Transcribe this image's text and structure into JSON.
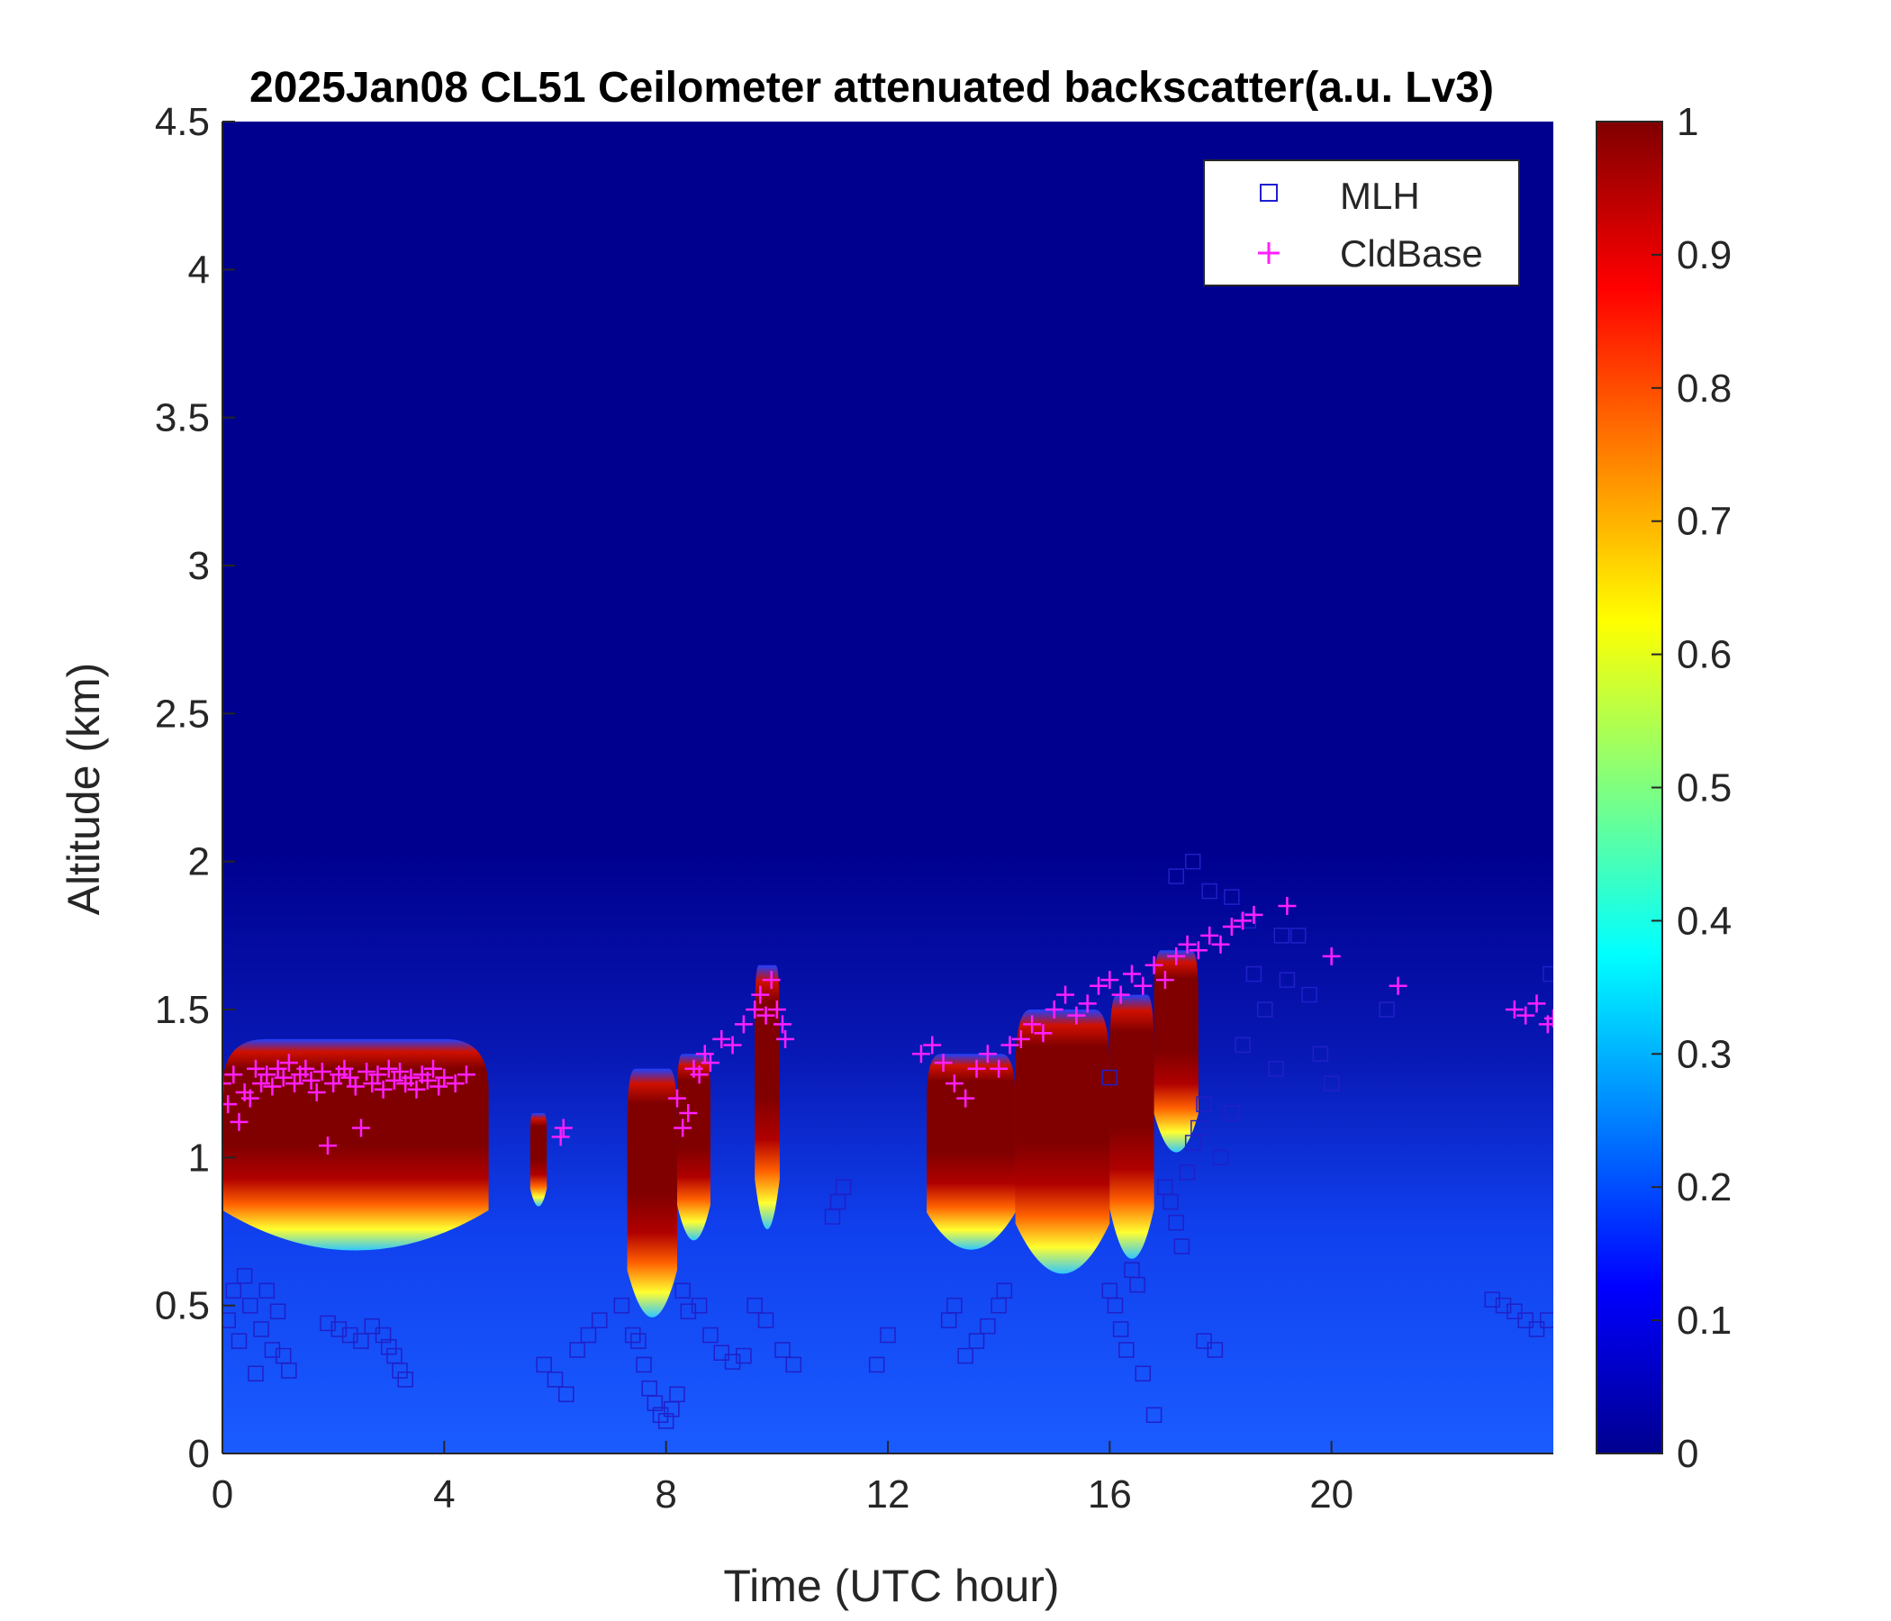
{
  "chart_data": {
    "type": "heatmap",
    "title": "2025Jan08 CL51 Ceilometer attenuated backscatter(a.u. Lv3)",
    "xlabel": "Time (UTC hour)",
    "ylabel": "Altitude (km)",
    "xlim": [
      0,
      24
    ],
    "ylim": [
      0,
      4.5
    ],
    "x_ticks": [
      0,
      4,
      8,
      12,
      16,
      20
    ],
    "y_ticks": [
      0,
      0.5,
      1,
      1.5,
      2,
      2.5,
      3,
      3.5,
      4,
      4.5
    ],
    "colorbar": {
      "colormap": "jet",
      "clim": [
        0,
        1
      ],
      "ticks": [
        0,
        0.1,
        0.2,
        0.3,
        0.4,
        0.5,
        0.6,
        0.7,
        0.8,
        0.9,
        1
      ]
    },
    "legend": {
      "position": "top-right",
      "entries": [
        {
          "name": "MLH",
          "marker": "square",
          "color": "#1f1fd0"
        },
        {
          "name": "CldBase",
          "marker": "plus",
          "color": "#ff1fff"
        }
      ]
    },
    "cloud_layers": [
      {
        "t0": 0.0,
        "t1": 4.8,
        "base": 0.72,
        "top": 1.4
      },
      {
        "t0": 5.55,
        "t1": 5.85,
        "base": 0.85,
        "top": 1.15
      },
      {
        "t0": 7.3,
        "t1": 8.2,
        "base": 0.5,
        "top": 1.3
      },
      {
        "t0": 8.2,
        "t1": 8.8,
        "base": 0.75,
        "top": 1.35
      },
      {
        "t0": 9.6,
        "t1": 10.05,
        "base": 0.8,
        "top": 1.65
      },
      {
        "t0": 12.7,
        "t1": 14.3,
        "base": 0.72,
        "top": 1.35
      },
      {
        "t0": 14.3,
        "t1": 16.0,
        "base": 0.65,
        "top": 1.5
      },
      {
        "t0": 16.0,
        "t1": 16.8,
        "base": 0.7,
        "top": 1.55
      },
      {
        "t0": 16.8,
        "t1": 17.6,
        "base": 1.05,
        "top": 1.7
      }
    ],
    "series": [
      {
        "name": "MLH",
        "points": [
          [
            0.1,
            0.45
          ],
          [
            0.2,
            0.55
          ],
          [
            0.3,
            0.38
          ],
          [
            0.4,
            0.6
          ],
          [
            0.5,
            0.5
          ],
          [
            0.6,
            0.27
          ],
          [
            0.7,
            0.42
          ],
          [
            0.8,
            0.55
          ],
          [
            0.9,
            0.35
          ],
          [
            1.0,
            0.48
          ],
          [
            1.1,
            0.33
          ],
          [
            1.2,
            0.28
          ],
          [
            1.9,
            0.44
          ],
          [
            2.1,
            0.42
          ],
          [
            2.3,
            0.4
          ],
          [
            2.5,
            0.38
          ],
          [
            2.7,
            0.43
          ],
          [
            2.9,
            0.4
          ],
          [
            3.0,
            0.36
          ],
          [
            3.1,
            0.33
          ],
          [
            3.2,
            0.28
          ],
          [
            3.3,
            0.25
          ],
          [
            5.8,
            0.3
          ],
          [
            6.0,
            0.25
          ],
          [
            6.2,
            0.2
          ],
          [
            6.4,
            0.35
          ],
          [
            6.6,
            0.4
          ],
          [
            6.8,
            0.45
          ],
          [
            7.2,
            0.5
          ],
          [
            7.4,
            0.4
          ],
          [
            7.5,
            0.38
          ],
          [
            7.6,
            0.3
          ],
          [
            7.7,
            0.22
          ],
          [
            7.8,
            0.17
          ],
          [
            7.9,
            0.13
          ],
          [
            8.0,
            0.11
          ],
          [
            8.1,
            0.15
          ],
          [
            8.2,
            0.2
          ],
          [
            8.3,
            0.55
          ],
          [
            8.4,
            0.48
          ],
          [
            8.6,
            0.5
          ],
          [
            8.8,
            0.4
          ],
          [
            9.0,
            0.34
          ],
          [
            9.2,
            0.31
          ],
          [
            9.4,
            0.33
          ],
          [
            9.6,
            0.5
          ],
          [
            9.8,
            0.45
          ],
          [
            10.1,
            0.35
          ],
          [
            10.3,
            0.3
          ],
          [
            11.0,
            0.8
          ],
          [
            11.1,
            0.85
          ],
          [
            11.2,
            0.9
          ],
          [
            11.8,
            0.3
          ],
          [
            12.0,
            0.4
          ],
          [
            13.1,
            0.45
          ],
          [
            13.2,
            0.5
          ],
          [
            13.4,
            0.33
          ],
          [
            13.6,
            0.38
          ],
          [
            13.8,
            0.43
          ],
          [
            14.0,
            0.5
          ],
          [
            14.1,
            0.55
          ],
          [
            16.0,
            1.27
          ],
          [
            16.0,
            0.55
          ],
          [
            16.1,
            0.5
          ],
          [
            16.2,
            0.42
          ],
          [
            16.3,
            0.35
          ],
          [
            16.4,
            0.62
          ],
          [
            16.5,
            0.57
          ],
          [
            16.6,
            0.27
          ],
          [
            16.8,
            0.13
          ],
          [
            17.0,
            0.9
          ],
          [
            17.1,
            0.85
          ],
          [
            17.2,
            0.78
          ],
          [
            17.3,
            0.7
          ],
          [
            17.4,
            0.95
          ],
          [
            17.5,
            1.05
          ],
          [
            17.6,
            1.1
          ],
          [
            17.7,
            1.18
          ],
          [
            17.7,
            0.38
          ],
          [
            17.9,
            0.35
          ],
          [
            18.0,
            1.0
          ],
          [
            18.2,
            1.15
          ],
          [
            18.4,
            1.38
          ],
          [
            18.6,
            1.62
          ],
          [
            18.8,
            1.5
          ],
          [
            19.0,
            1.3
          ],
          [
            19.2,
            1.6
          ],
          [
            19.4,
            1.75
          ],
          [
            19.6,
            1.55
          ],
          [
            19.8,
            1.35
          ],
          [
            20.0,
            1.25
          ],
          [
            17.2,
            1.95
          ],
          [
            17.5,
            2.0
          ],
          [
            17.8,
            1.9
          ],
          [
            18.2,
            1.88
          ],
          [
            18.5,
            1.8
          ],
          [
            19.1,
            1.75
          ],
          [
            21.0,
            1.5
          ],
          [
            22.9,
            0.52
          ],
          [
            23.1,
            0.5
          ],
          [
            23.3,
            0.48
          ],
          [
            23.5,
            0.45
          ],
          [
            23.7,
            0.42
          ],
          [
            23.9,
            0.45
          ],
          [
            23.95,
            1.62
          ]
        ]
      },
      {
        "name": "CldBase",
        "points": [
          [
            0.0,
            1.25
          ],
          [
            0.1,
            1.18
          ],
          [
            0.2,
            1.28
          ],
          [
            0.3,
            1.12
          ],
          [
            0.4,
            1.22
          ],
          [
            0.5,
            1.2
          ],
          [
            0.6,
            1.3
          ],
          [
            0.7,
            1.25
          ],
          [
            0.8,
            1.28
          ],
          [
            0.9,
            1.24
          ],
          [
            1.0,
            1.3
          ],
          [
            1.1,
            1.27
          ],
          [
            1.2,
            1.32
          ],
          [
            1.3,
            1.25
          ],
          [
            1.4,
            1.28
          ],
          [
            1.5,
            1.3
          ],
          [
            1.6,
            1.26
          ],
          [
            1.7,
            1.22
          ],
          [
            1.8,
            1.29
          ],
          [
            1.9,
            1.04
          ],
          [
            2.0,
            1.25
          ],
          [
            2.1,
            1.28
          ],
          [
            2.2,
            1.3
          ],
          [
            2.3,
            1.27
          ],
          [
            2.4,
            1.24
          ],
          [
            2.5,
            1.1
          ],
          [
            2.6,
            1.29
          ],
          [
            2.7,
            1.25
          ],
          [
            2.8,
            1.28
          ],
          [
            2.9,
            1.23
          ],
          [
            3.0,
            1.3
          ],
          [
            3.1,
            1.26
          ],
          [
            3.2,
            1.29
          ],
          [
            3.3,
            1.25
          ],
          [
            3.4,
            1.27
          ],
          [
            3.5,
            1.23
          ],
          [
            3.6,
            1.28
          ],
          [
            3.7,
            1.26
          ],
          [
            3.8,
            1.3
          ],
          [
            3.9,
            1.24
          ],
          [
            4.0,
            1.27
          ],
          [
            4.2,
            1.25
          ],
          [
            4.4,
            1.28
          ],
          [
            6.1,
            1.07
          ],
          [
            6.15,
            1.1
          ],
          [
            8.2,
            1.2
          ],
          [
            8.3,
            1.1
          ],
          [
            8.4,
            1.15
          ],
          [
            8.5,
            1.3
          ],
          [
            8.6,
            1.28
          ],
          [
            8.7,
            1.35
          ],
          [
            8.8,
            1.32
          ],
          [
            9.0,
            1.4
          ],
          [
            9.2,
            1.38
          ],
          [
            9.4,
            1.45
          ],
          [
            9.6,
            1.5
          ],
          [
            9.7,
            1.55
          ],
          [
            9.8,
            1.48
          ],
          [
            9.9,
            1.6
          ],
          [
            10.0,
            1.5
          ],
          [
            10.1,
            1.45
          ],
          [
            10.15,
            1.4
          ],
          [
            12.6,
            1.35
          ],
          [
            12.8,
            1.38
          ],
          [
            13.0,
            1.32
          ],
          [
            13.2,
            1.25
          ],
          [
            13.4,
            1.2
          ],
          [
            13.6,
            1.3
          ],
          [
            13.8,
            1.35
          ],
          [
            14.0,
            1.3
          ],
          [
            14.2,
            1.38
          ],
          [
            14.4,
            1.4
          ],
          [
            14.6,
            1.45
          ],
          [
            14.8,
            1.42
          ],
          [
            15.0,
            1.5
          ],
          [
            15.2,
            1.55
          ],
          [
            15.4,
            1.48
          ],
          [
            15.6,
            1.52
          ],
          [
            15.8,
            1.58
          ],
          [
            16.0,
            1.6
          ],
          [
            16.2,
            1.55
          ],
          [
            16.4,
            1.62
          ],
          [
            16.6,
            1.58
          ],
          [
            16.8,
            1.65
          ],
          [
            17.0,
            1.6
          ],
          [
            17.2,
            1.68
          ],
          [
            17.4,
            1.72
          ],
          [
            17.6,
            1.7
          ],
          [
            17.8,
            1.75
          ],
          [
            18.0,
            1.72
          ],
          [
            18.2,
            1.78
          ],
          [
            18.4,
            1.8
          ],
          [
            18.6,
            1.82
          ],
          [
            19.2,
            1.85
          ],
          [
            20.0,
            1.68
          ],
          [
            21.2,
            1.58
          ],
          [
            23.3,
            1.5
          ],
          [
            23.5,
            1.48
          ],
          [
            23.7,
            1.52
          ],
          [
            23.9,
            1.45
          ],
          [
            24.0,
            1.47
          ]
        ]
      }
    ]
  }
}
